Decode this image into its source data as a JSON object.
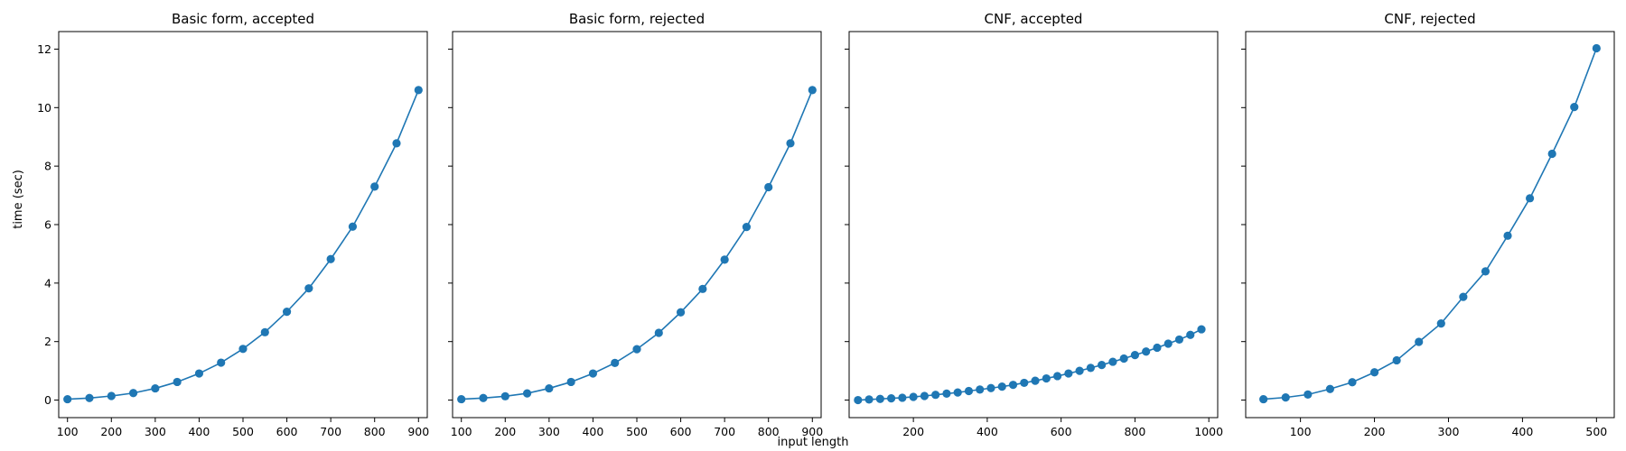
{
  "figure": {
    "ylabel": "time (sec)",
    "xlabel": "input length",
    "series_color": "#1f77b4"
  },
  "chart_data": [
    {
      "type": "line",
      "title": "Basic form, accepted",
      "xlim": [
        80,
        920
      ],
      "ylim": [
        -0.6,
        12.6
      ],
      "xticks": [
        100,
        200,
        300,
        400,
        500,
        600,
        700,
        800,
        900
      ],
      "yticks": [
        0,
        2,
        4,
        6,
        8,
        10,
        12
      ],
      "x": [
        100,
        150,
        200,
        250,
        300,
        350,
        400,
        450,
        500,
        550,
        600,
        650,
        700,
        750,
        800,
        850,
        900
      ],
      "y": [
        0.03,
        0.07,
        0.14,
        0.24,
        0.4,
        0.62,
        0.91,
        1.28,
        1.75,
        2.32,
        3.02,
        3.82,
        4.82,
        5.93,
        7.3,
        8.78,
        10.6
      ]
    },
    {
      "type": "line",
      "title": "Basic form, rejected",
      "xlim": [
        80,
        920
      ],
      "ylim": [
        -0.6,
        12.6
      ],
      "xticks": [
        100,
        200,
        300,
        400,
        500,
        600,
        700,
        800,
        900
      ],
      "yticks": [
        0,
        2,
        4,
        6,
        8,
        10,
        12
      ],
      "x": [
        100,
        150,
        200,
        250,
        300,
        350,
        400,
        450,
        500,
        550,
        600,
        650,
        700,
        750,
        800,
        850,
        900
      ],
      "y": [
        0.03,
        0.07,
        0.13,
        0.23,
        0.4,
        0.62,
        0.91,
        1.27,
        1.74,
        2.3,
        3.0,
        3.8,
        4.8,
        5.92,
        7.28,
        8.78,
        10.6
      ]
    },
    {
      "type": "line",
      "title": "CNF, accepted",
      "xlim": [
        26,
        1024
      ],
      "ylim": [
        -0.6,
        12.6
      ],
      "xticks": [
        200,
        400,
        600,
        800,
        1000
      ],
      "yticks": [
        0,
        2,
        4,
        6,
        8,
        10,
        12
      ],
      "x": [
        50,
        80,
        110,
        140,
        170,
        200,
        230,
        260,
        290,
        320,
        350,
        380,
        410,
        440,
        470,
        500,
        530,
        560,
        590,
        620,
        650,
        680,
        710,
        740,
        770,
        800,
        830,
        860,
        890,
        920,
        950,
        980
      ],
      "y": [
        0.0,
        0.02,
        0.04,
        0.06,
        0.08,
        0.11,
        0.14,
        0.18,
        0.22,
        0.26,
        0.31,
        0.36,
        0.41,
        0.46,
        0.52,
        0.59,
        0.66,
        0.74,
        0.82,
        0.91,
        1.0,
        1.1,
        1.2,
        1.31,
        1.42,
        1.54,
        1.66,
        1.79,
        1.93,
        2.07,
        2.23,
        2.42
      ]
    },
    {
      "type": "line",
      "title": "CNF, rejected",
      "xlim": [
        26,
        524
      ],
      "ylim": [
        -0.6,
        12.6
      ],
      "xticks": [
        100,
        200,
        300,
        400,
        500
      ],
      "yticks": [
        0,
        2,
        4,
        6,
        8,
        10,
        12
      ],
      "x": [
        50,
        80,
        110,
        140,
        170,
        200,
        230,
        260,
        290,
        320,
        350,
        380,
        410,
        440,
        470,
        500
      ],
      "y": [
        0.03,
        0.09,
        0.19,
        0.38,
        0.61,
        0.95,
        1.36,
        1.99,
        2.62,
        3.53,
        4.4,
        5.62,
        6.9,
        8.42,
        10.02,
        12.03
      ]
    }
  ]
}
